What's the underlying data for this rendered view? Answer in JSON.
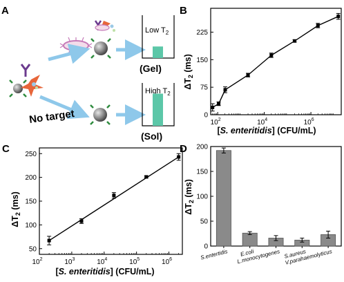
{
  "panel_a": {
    "label": "A",
    "top_box": {
      "text": "Low T",
      "sub": "2",
      "caption": "(Gel)",
      "level": 0.27
    },
    "bottom_box": {
      "text": "High T",
      "sub": "2",
      "caption": "(Sol)",
      "level": 0.75
    },
    "no_target": "No target",
    "colors": {
      "bar": "#5cc7a8",
      "arrow": "#8ec8ea",
      "particle": "#8c8c8c",
      "linker": "#2e8b3e",
      "antibody": "#6b3a8e",
      "bacteria": "#c57ab8",
      "star": "#e7663a"
    }
  },
  "chart_data": [
    {
      "panel": "B",
      "type": "line",
      "x_scale": "log",
      "xlim": [
        50,
        20000000
      ],
      "ylim": [
        0,
        290
      ],
      "xticks": [
        100,
        10000,
        1000000
      ],
      "xtick_labels": [
        "10",
        "10",
        "10"
      ],
      "xtick_exps": [
        "2",
        "4",
        "6"
      ],
      "yticks": [
        0,
        75,
        150,
        225
      ],
      "ylabel_main": "ΔT",
      "ylabel_sub": "2",
      "ylabel_unit": " (ms)",
      "xlabel_pre": "[",
      "xlabel_species": "S. enteritidis",
      "xlabel_post": "] (CFU/mL)",
      "points": [
        {
          "x": 60,
          "y": 20,
          "err": 10
        },
        {
          "x": 110,
          "y": 30,
          "err": 5
        },
        {
          "x": 210,
          "y": 68,
          "err": 8
        },
        {
          "x": 2000,
          "y": 108,
          "err": 5
        },
        {
          "x": 20000,
          "y": 162,
          "err": 6
        },
        {
          "x": 200000,
          "y": 201,
          "err": 3
        },
        {
          "x": 2000000,
          "y": 243,
          "err": 6
        },
        {
          "x": 15000000,
          "y": 268,
          "err": 8
        }
      ]
    },
    {
      "panel": "C",
      "type": "line",
      "x_scale": "log",
      "xlim": [
        100,
        2600000
      ],
      "ylim": [
        38,
        262
      ],
      "xticks": [
        100,
        1000,
        10000,
        100000,
        1000000
      ],
      "xtick_labels": [
        "10",
        "10",
        "10",
        "10",
        "10"
      ],
      "xtick_exps": [
        "2",
        "3",
        "4",
        "5",
        "6"
      ],
      "yticks": [
        50,
        100,
        150,
        200,
        250
      ],
      "ylabel_main": "ΔT",
      "ylabel_sub": "2",
      "ylabel_unit": " (ms)",
      "xlabel_pre": "[",
      "xlabel_species": "S. enteritidis",
      "xlabel_post": "] (CFU/mL)",
      "points": [
        {
          "x": 200,
          "y": 67,
          "err": 9
        },
        {
          "x": 2000,
          "y": 108,
          "err": 5
        },
        {
          "x": 20000,
          "y": 162,
          "err": 6
        },
        {
          "x": 200000,
          "y": 201,
          "err": 2
        },
        {
          "x": 2000000,
          "y": 243,
          "err": 7
        }
      ]
    },
    {
      "panel": "D",
      "type": "bar",
      "ylim": [
        0,
        200
      ],
      "yticks": [
        0,
        50,
        100,
        150,
        200
      ],
      "ylabel_main": "ΔT",
      "ylabel_sub": "2",
      "ylabel_unit": " (ms)",
      "categories": [
        "S.entertidis",
        "E.coli",
        "L.monocytogenes",
        "S.aureus",
        "V.parahaemolyticus"
      ],
      "values": [
        192,
        26,
        16,
        12,
        23
      ],
      "errors": [
        5,
        3,
        5,
        4,
        7
      ],
      "bar_color": "#8a8a8a"
    }
  ]
}
